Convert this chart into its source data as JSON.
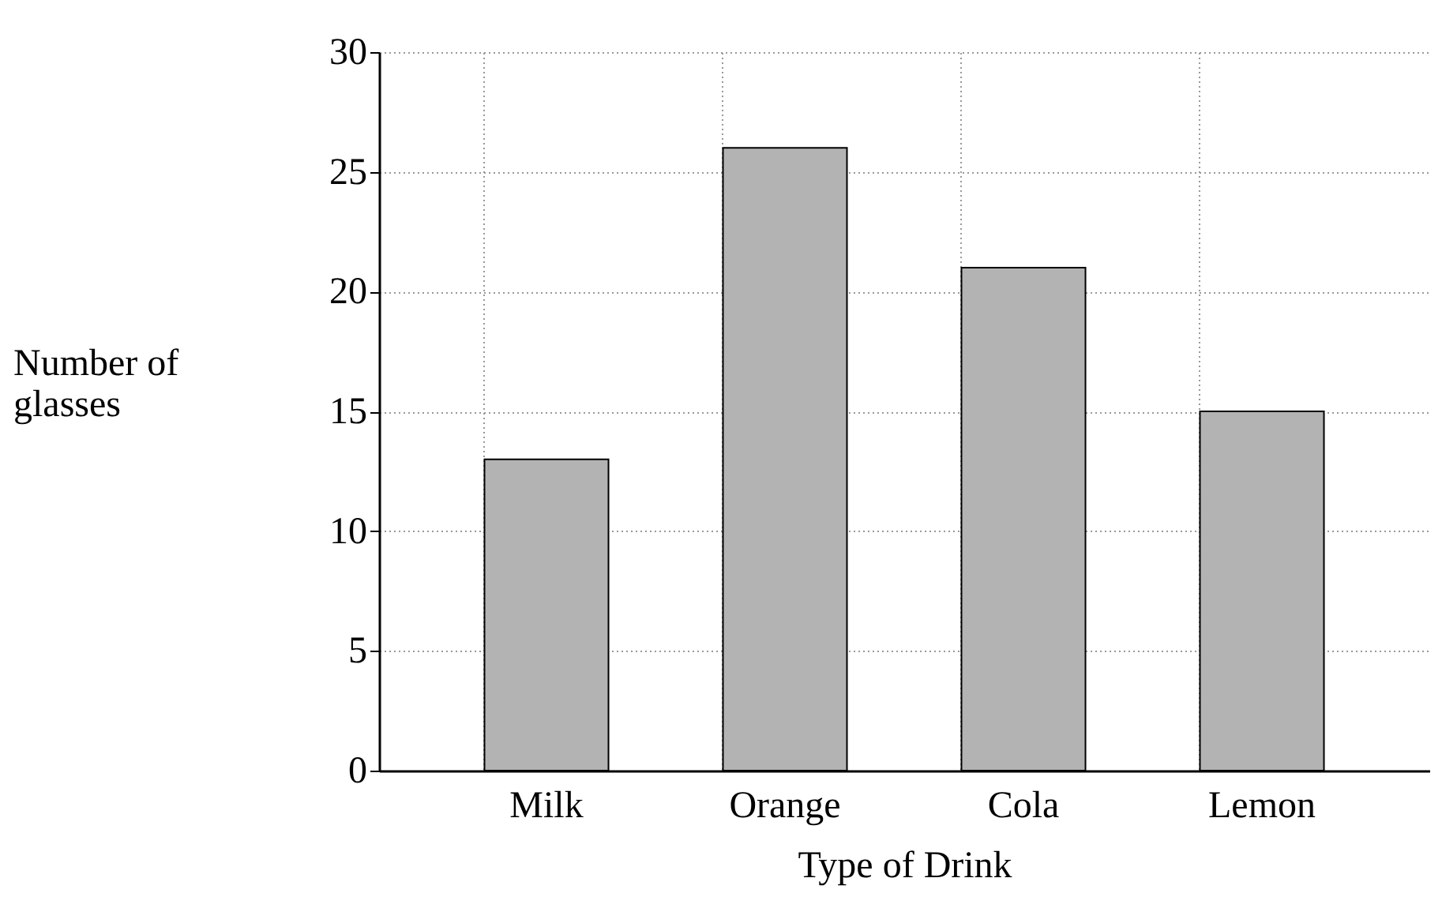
{
  "chart_data": {
    "type": "bar",
    "xlabel": "Type of Drink",
    "ylabel": "Number of glasses",
    "categories": [
      "Milk",
      "Orange",
      "Cola",
      "Lemon"
    ],
    "values": [
      13,
      26,
      21,
      15
    ],
    "color": "#b3b3b3",
    "ylim": [
      0,
      30
    ],
    "yticks": [
      0,
      5,
      10,
      15,
      20,
      25,
      30
    ],
    "grid": true
  }
}
